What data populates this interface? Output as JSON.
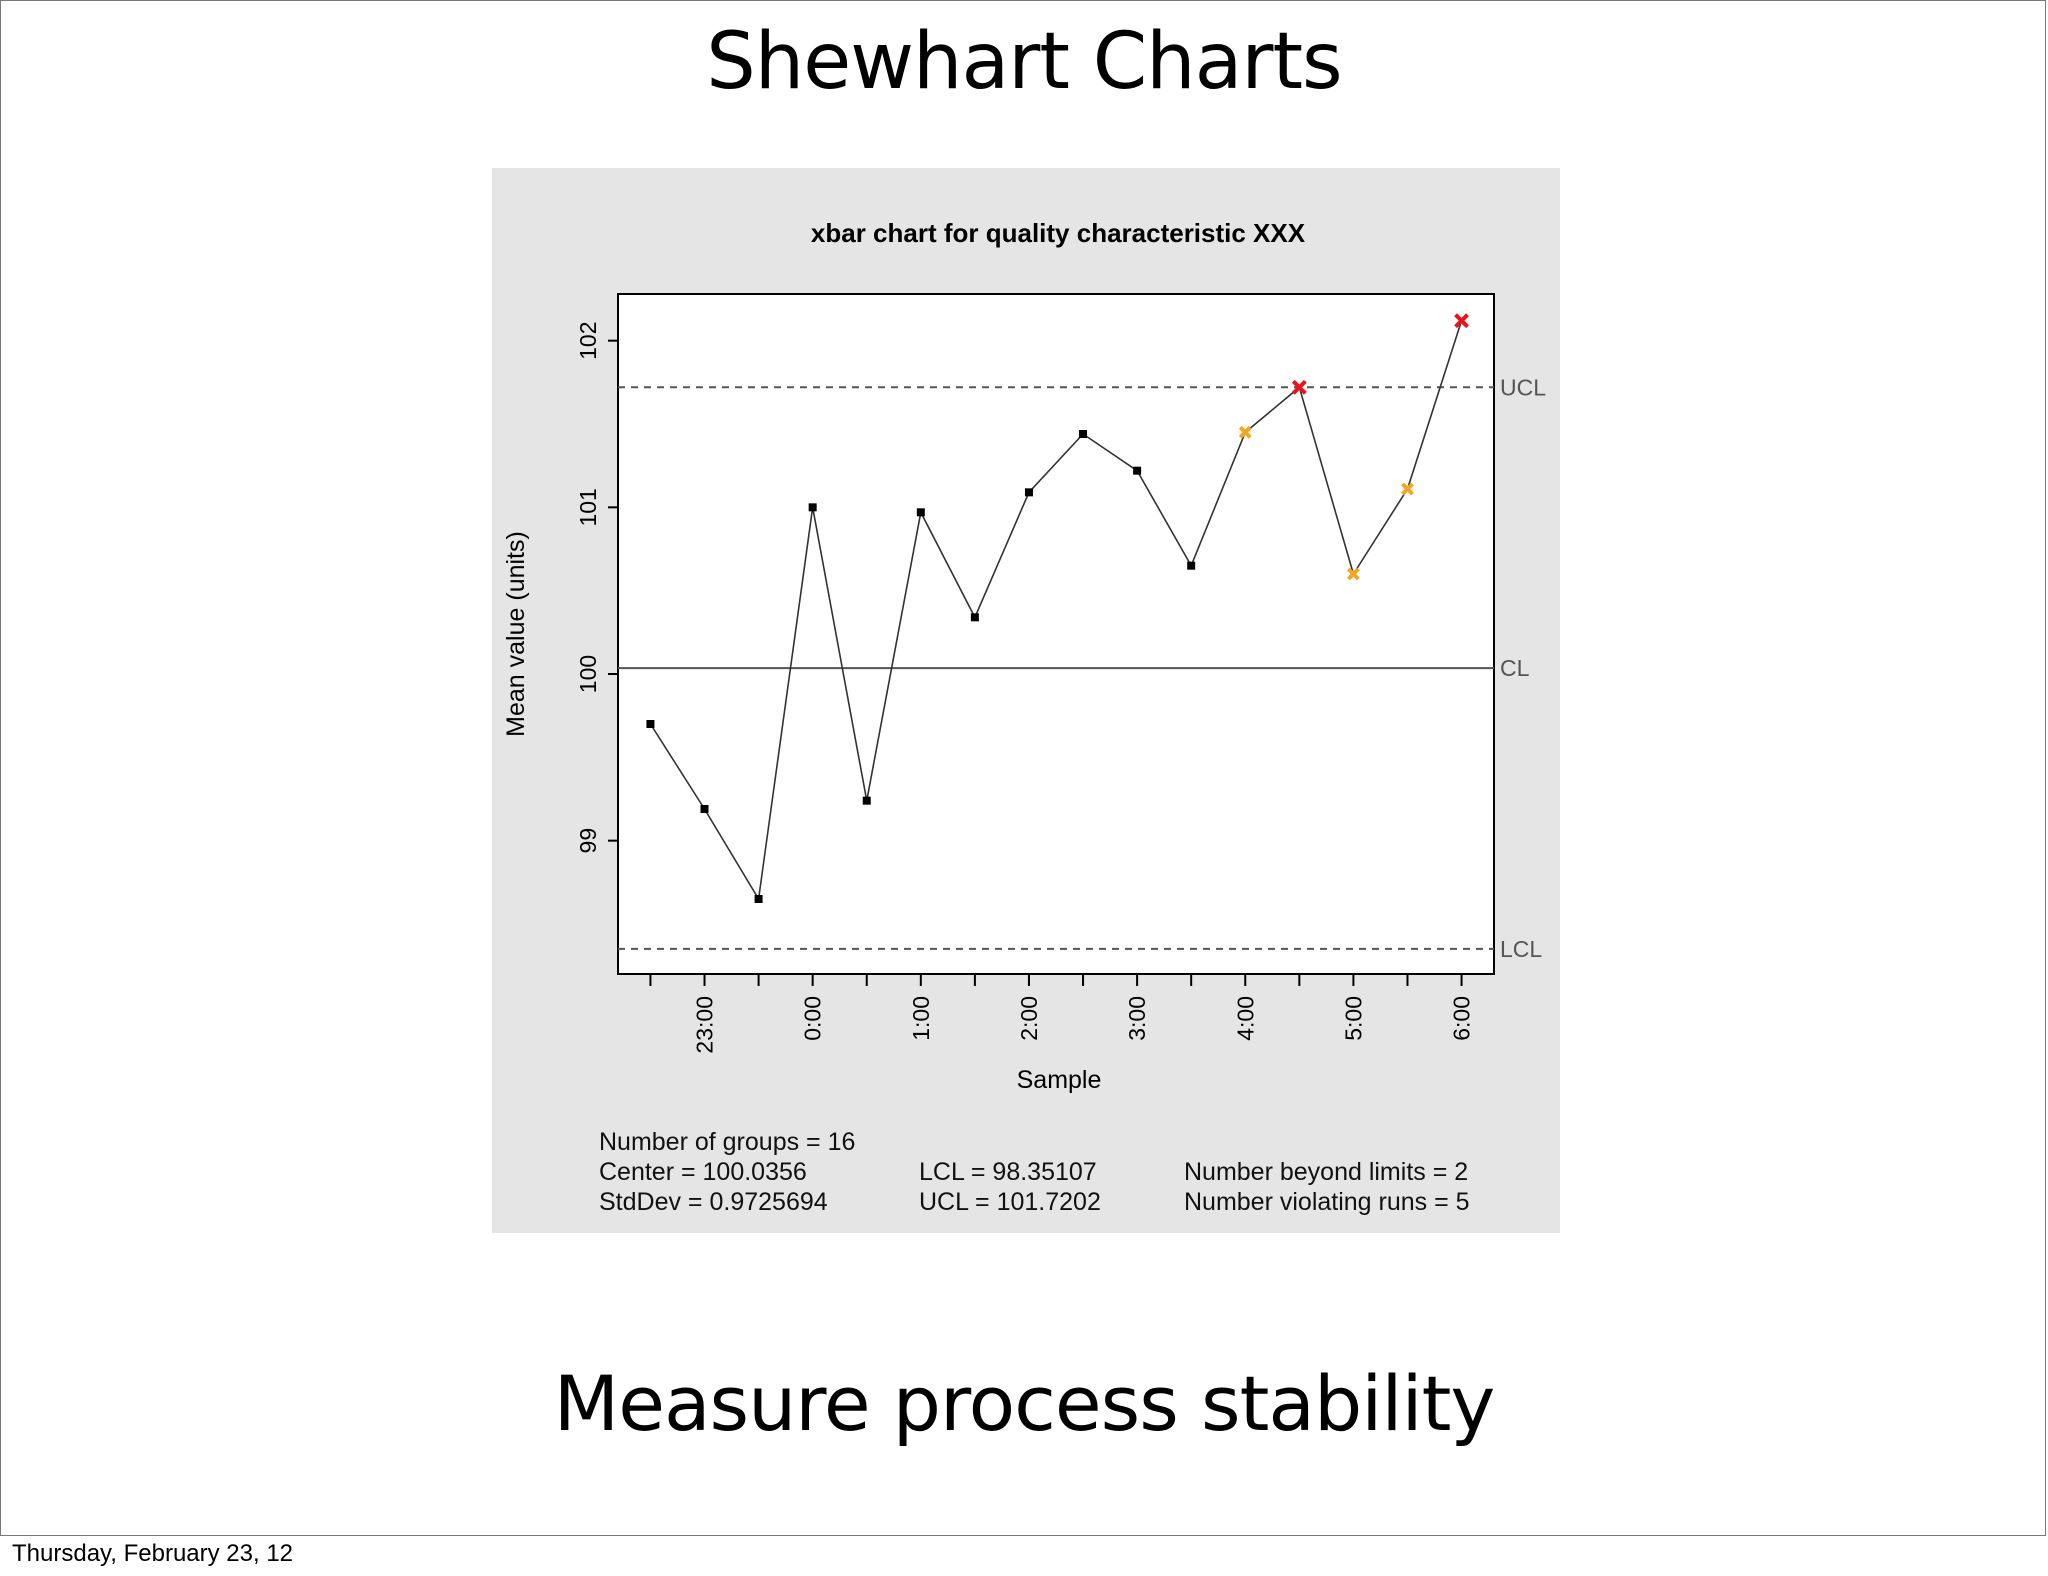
{
  "slide": {
    "title": "Shewhart Charts",
    "subtitle": "Measure process stability",
    "footer_date": "Thursday, February 23, 12"
  },
  "colors": {
    "panel_bg": "#e5e5e5",
    "normal_point": "#000000",
    "run_violation": "#f5a623",
    "beyond_limits": "#e8141c"
  },
  "chart_data": {
    "type": "line",
    "title": "xbar chart for quality characteristic XXX",
    "xlabel": "Sample",
    "ylabel": "Mean value (units)",
    "ylim": [
      98.2,
      102.28
    ],
    "y_ticks": [
      99,
      100,
      101,
      102
    ],
    "x_tick_labels": [
      "23:00",
      "0:00",
      "1:00",
      "2:00",
      "3:00",
      "4:00",
      "5:00",
      "6:00"
    ],
    "x_tick_label_positions": [
      2,
      4,
      6,
      8,
      10,
      12,
      14,
      16
    ],
    "x": [
      1,
      2,
      3,
      4,
      5,
      6,
      7,
      8,
      9,
      10,
      11,
      12,
      13,
      14,
      15,
      16
    ],
    "values": [
      99.7,
      99.19,
      98.65,
      101.0,
      99.24,
      100.97,
      100.34,
      101.09,
      101.44,
      101.22,
      100.65,
      101.45,
      101.72,
      100.6,
      101.11,
      102.12
    ],
    "point_status": [
      "normal",
      "normal",
      "normal",
      "normal",
      "normal",
      "normal",
      "normal",
      "normal",
      "normal",
      "normal",
      "normal",
      "run",
      "beyond",
      "run",
      "run",
      "beyond"
    ],
    "control_lines": [
      {
        "label": "UCL",
        "value": 101.7202,
        "style": "dashed"
      },
      {
        "label": "CL",
        "value": 100.0356,
        "style": "solid"
      },
      {
        "label": "LCL",
        "value": 98.35107,
        "style": "dashed"
      }
    ],
    "stats": {
      "groups": "Number of groups = 16",
      "center": "Center = 100.0356",
      "stddev": "StdDev = 0.9725694",
      "lcl": "LCL = 98.35107",
      "ucl": "UCL = 101.7202",
      "beyond": "Number beyond limits = 2",
      "violating": "Number violating runs = 5"
    }
  }
}
